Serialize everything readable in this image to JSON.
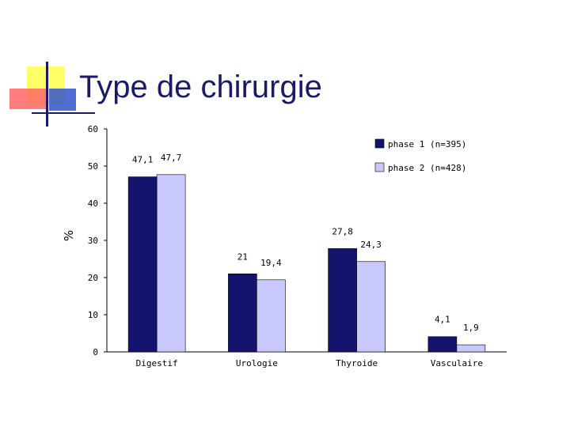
{
  "slide": {
    "title": "Type de chirurgie",
    "accent_colors": {
      "yellow": "#ffff66",
      "red": "#ff6666",
      "blue": "#3355cc",
      "navy": "#1a1a66"
    }
  },
  "chart_data": {
    "type": "bar",
    "title": "",
    "xlabel": "",
    "ylabel": "%",
    "ylim": [
      0,
      60
    ],
    "yticks": [
      "0",
      "10",
      "20",
      "30",
      "40",
      "50",
      "60"
    ],
    "categories": [
      "Digestif",
      "Urologie",
      "Thyroide",
      "Vasculaire"
    ],
    "legend_position": "top-right",
    "grid": false,
    "series": [
      {
        "name": "phase 1 (n=395)",
        "color": "#14146e",
        "values": [
          47.1,
          21,
          27.8,
          4.1
        ],
        "labels": [
          "47,1",
          "21",
          "27,8",
          "4,1"
        ]
      },
      {
        "name": "phase 2 (n=428)",
        "color": "#c8c8ff",
        "values": [
          47.7,
          19.4,
          24.3,
          1.9
        ],
        "labels": [
          "47,7",
          "19,4",
          "24,3",
          "1,9"
        ]
      }
    ]
  }
}
